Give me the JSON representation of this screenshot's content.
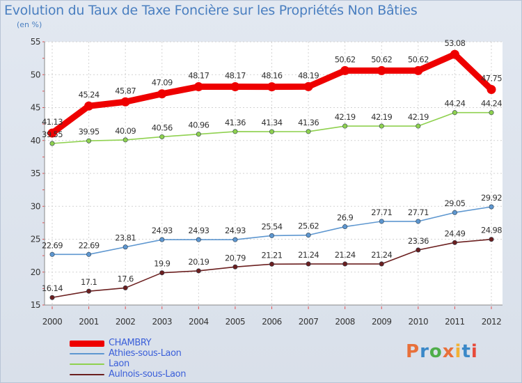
{
  "title": "Evolution du Taux de Taxe Foncière sur les Propriétés Non Bâties",
  "unit_label": "(en %)",
  "logo": {
    "text": "Proxiti",
    "colors": [
      "#e8703a",
      "#3a88c8",
      "#4fae4a",
      "#e8703a",
      "#f2b233",
      "#3a88c8",
      "#e84a3a"
    ]
  },
  "chart_data": {
    "type": "line",
    "title": "Evolution du Taux de Taxe Foncière sur les Propriétés Non Bâties",
    "ylabel": "(en %)",
    "xlabel": "",
    "ylim": [
      15,
      55
    ],
    "yticks": [
      15,
      20,
      25,
      30,
      35,
      40,
      45,
      50,
      55
    ],
    "grid": true,
    "legend_position": "bottom-left",
    "categories": [
      "2000",
      "2001",
      "2002",
      "2003",
      "2004",
      "2005",
      "2006",
      "2007",
      "2008",
      "2009",
      "2010",
      "2011",
      "2012"
    ],
    "series": [
      {
        "name": "CHAMBRY",
        "color": "#ee0000",
        "values": [
          41.13,
          45.24,
          45.87,
          47.09,
          48.17,
          48.17,
          48.16,
          48.19,
          50.62,
          50.62,
          50.62,
          53.08,
          47.75
        ],
        "labels": [
          "41.13",
          "45.24",
          "45.87",
          "47.09",
          "48.17",
          "48.17",
          "48.16",
          "48.19",
          "50.62",
          "50.62",
          "50.62",
          "53.08",
          "47.75"
        ]
      },
      {
        "name": "Athies-sous-Laon",
        "color": "#5e97d0",
        "values": [
          22.69,
          22.69,
          23.81,
          24.93,
          24.93,
          24.93,
          25.54,
          25.62,
          26.9,
          27.71,
          27.71,
          29.05,
          29.92
        ],
        "labels": [
          "22.69",
          "22.69",
          "23.81",
          "24.93",
          "24.93",
          "24.93",
          "25.54",
          "25.62",
          "26.9",
          "27.71",
          "27.71",
          "29.05",
          "29.92"
        ]
      },
      {
        "name": "Laon",
        "color": "#8fd14f",
        "values": [
          39.55,
          39.95,
          40.09,
          40.56,
          40.96,
          41.36,
          41.34,
          41.36,
          42.19,
          42.19,
          42.19,
          44.24,
          44.24
        ],
        "labels": [
          "39.55",
          "39.95",
          "40.09",
          "40.56",
          "40.96",
          "41.36",
          "41.34",
          "41.36",
          "42.19",
          "42.19",
          "42.19",
          "44.24",
          "44.24"
        ]
      },
      {
        "name": "Aulnois-sous-Laon",
        "color": "#6b1f1f",
        "values": [
          16.14,
          17.1,
          17.6,
          19.9,
          20.19,
          20.79,
          21.21,
          21.24,
          21.24,
          21.24,
          23.36,
          24.49,
          24.98
        ],
        "labels": [
          "16.14",
          "17.1",
          "17.6",
          "19.9",
          "20.19",
          "20.79",
          "21.21",
          "21.24",
          "21.24",
          "21.24",
          "23.36",
          "24.49",
          "24.98"
        ]
      }
    ]
  }
}
